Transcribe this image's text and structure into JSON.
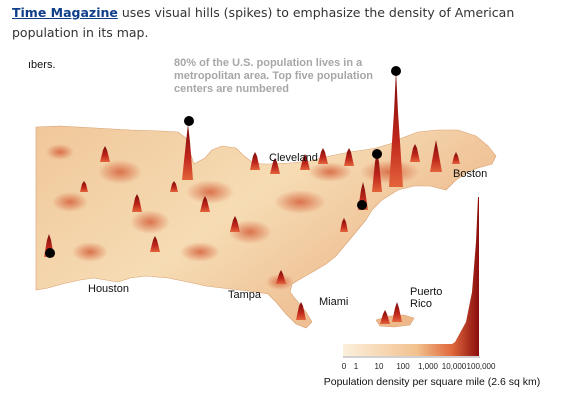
{
  "caption": {
    "link_text": "Time Magazine",
    "text": " uses visual hills (spikes) to emphasize the density of American population in its map."
  },
  "map": {
    "fragment_text": "ıbers.",
    "annotation": "80% of the U.S. population lives in a metropolitan area. Top five population centers are numbered",
    "cities": {
      "cleveland": "Cleveland",
      "boston": "Boston",
      "houston": "Houston",
      "tampa": "Tampa",
      "miami": "Miami",
      "puerto_rico_line1": "Puerto",
      "puerto_rico_line2": "Rico"
    },
    "colors": {
      "land_light": "#f6dcb4",
      "land_mid": "#eeb98a",
      "spike_dark": "#8c0d0d",
      "spike_mid": "#c72a1c",
      "water": "#ffffff",
      "marker": "#000000"
    }
  },
  "legend": {
    "title": "Population density per square mile (2.6 sq km)",
    "ticks": [
      "0",
      "1",
      "10",
      "100",
      "1,000",
      "10,000",
      "100,000"
    ]
  }
}
